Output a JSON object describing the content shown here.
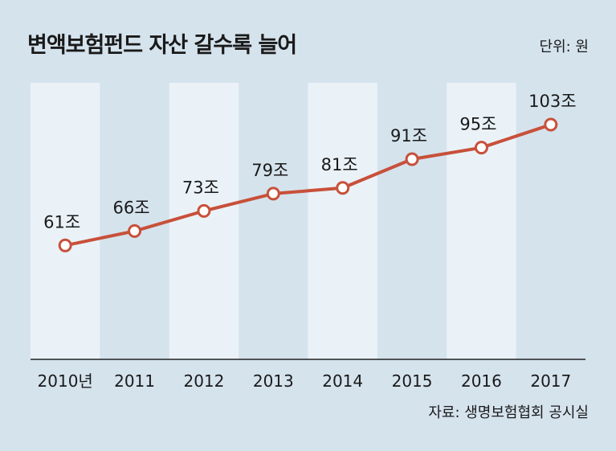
{
  "title": "변액보험펀드 자산 갈수록 늘어",
  "unit_label": "단위: 원",
  "source": "자료: 생명보험협회 공시실",
  "colors": {
    "background": "#d5e3ed",
    "band": "#eaf2f8",
    "line": "#c8503a",
    "marker_fill": "#ffffff",
    "axis": "#222222"
  },
  "chart_data": {
    "type": "line",
    "title": "변액보험펀드 자산 갈수록 늘어",
    "unit": "단위: 원",
    "categories": [
      "2010년",
      "2011",
      "2012",
      "2013",
      "2014",
      "2015",
      "2016",
      "2017"
    ],
    "series": [
      {
        "values": [
          61,
          66,
          73,
          79,
          81,
          91,
          95,
          103
        ],
        "labels": [
          "61조",
          "66조",
          "73조",
          "79조",
          "81조",
          "91조",
          "95조",
          "103조"
        ]
      }
    ],
    "ylim": [
      20,
      110
    ],
    "grid": false,
    "legend": "none"
  }
}
